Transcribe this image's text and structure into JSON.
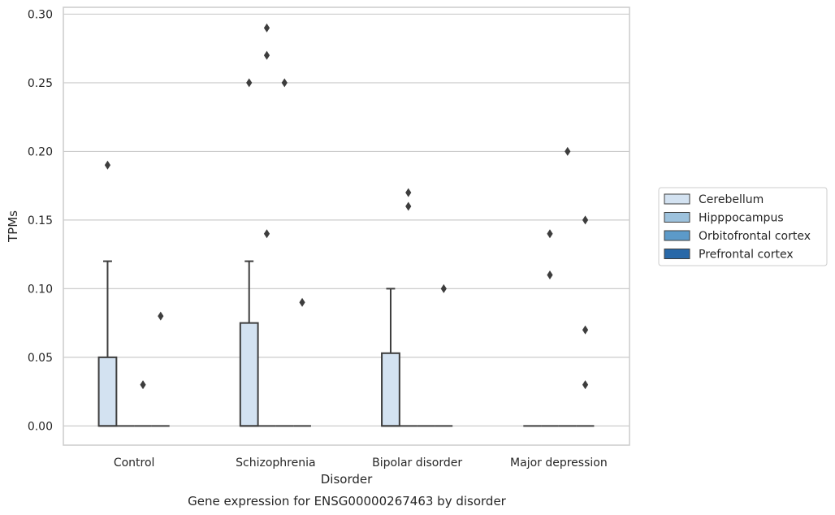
{
  "chart_data": {
    "type": "box",
    "xlabel": "Disorder",
    "ylabel": "TPMs",
    "caption": "Gene expression for ENSG00000267463 by disorder",
    "ylim": [
      -0.014,
      0.305
    ],
    "yticks": [
      0.0,
      0.05,
      0.1,
      0.15,
      0.2,
      0.25,
      0.3
    ],
    "ytick_labels": [
      "0.00",
      "0.05",
      "0.10",
      "0.15",
      "0.20",
      "0.25",
      "0.30"
    ],
    "grid": "horizontal",
    "legend_position": "right",
    "categories": [
      "Control",
      "Schizophrenia",
      "Bipolar disorder",
      "Major depression"
    ],
    "series": [
      {
        "name": "Cerebellum",
        "color": "#d3e2f1",
        "boxes": [
          {
            "category": "Control",
            "min": 0.0,
            "q1": 0.0,
            "median": 0.0,
            "q3": 0.05,
            "max": 0.12,
            "outliers": [
              0.19
            ]
          },
          {
            "category": "Schizophrenia",
            "min": 0.0,
            "q1": 0.0,
            "median": 0.0,
            "q3": 0.075,
            "max": 0.12,
            "outliers": [
              0.25
            ]
          },
          {
            "category": "Bipolar disorder",
            "min": 0.0,
            "q1": 0.0,
            "median": 0.0,
            "q3": 0.053,
            "max": 0.1,
            "outliers": []
          },
          {
            "category": "Major depression",
            "min": 0.0,
            "q1": 0.0,
            "median": 0.0,
            "q3": 0.0,
            "max": 0.0,
            "outliers": []
          }
        ]
      },
      {
        "name": "Hipppocampus",
        "color": "#9dc2dd",
        "boxes": [
          {
            "category": "Control",
            "min": 0.0,
            "q1": 0.0,
            "median": 0.0,
            "q3": 0.0,
            "max": 0.0,
            "outliers": []
          },
          {
            "category": "Schizophrenia",
            "min": 0.0,
            "q1": 0.0,
            "median": 0.0,
            "q3": 0.0,
            "max": 0.0,
            "outliers": [
              0.14,
              0.27,
              0.29
            ]
          },
          {
            "category": "Bipolar disorder",
            "min": 0.0,
            "q1": 0.0,
            "median": 0.0,
            "q3": 0.0,
            "max": 0.0,
            "outliers": [
              0.16,
              0.17
            ]
          },
          {
            "category": "Major depression",
            "min": 0.0,
            "q1": 0.0,
            "median": 0.0,
            "q3": 0.0,
            "max": 0.0,
            "outliers": [
              0.11,
              0.14
            ]
          }
        ]
      },
      {
        "name": "Orbitofrontal cortex",
        "color": "#5c9ac9",
        "boxes": [
          {
            "category": "Control",
            "min": 0.0,
            "q1": 0.0,
            "median": 0.0,
            "q3": 0.0,
            "max": 0.0,
            "outliers": [
              0.03
            ]
          },
          {
            "category": "Schizophrenia",
            "min": 0.0,
            "q1": 0.0,
            "median": 0.0,
            "q3": 0.0,
            "max": 0.0,
            "outliers": [
              0.25
            ]
          },
          {
            "category": "Bipolar disorder",
            "min": 0.0,
            "q1": 0.0,
            "median": 0.0,
            "q3": 0.0,
            "max": 0.0,
            "outliers": []
          },
          {
            "category": "Major depression",
            "min": 0.0,
            "q1": 0.0,
            "median": 0.0,
            "q3": 0.0,
            "max": 0.0,
            "outliers": [
              0.2
            ]
          }
        ]
      },
      {
        "name": "Prefrontal cortex",
        "color": "#2868a8",
        "boxes": [
          {
            "category": "Control",
            "min": 0.0,
            "q1": 0.0,
            "median": 0.0,
            "q3": 0.0,
            "max": 0.0,
            "outliers": [
              0.08
            ]
          },
          {
            "category": "Schizophrenia",
            "min": 0.0,
            "q1": 0.0,
            "median": 0.0,
            "q3": 0.0,
            "max": 0.0,
            "outliers": [
              0.09
            ]
          },
          {
            "category": "Bipolar disorder",
            "min": 0.0,
            "q1": 0.0,
            "median": 0.0,
            "q3": 0.0,
            "max": 0.0,
            "outliers": [
              0.1
            ]
          },
          {
            "category": "Major depression",
            "min": 0.0,
            "q1": 0.0,
            "median": 0.0,
            "q3": 0.0,
            "max": 0.0,
            "outliers": [
              0.03,
              0.07,
              0.15
            ]
          }
        ]
      }
    ]
  }
}
